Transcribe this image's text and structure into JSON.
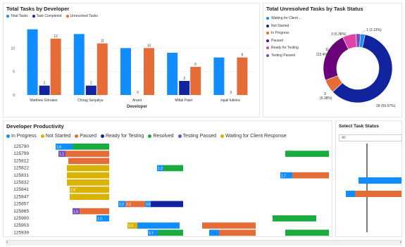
{
  "panels": {
    "tasks_by_dev": {
      "title": "Total Tasks by Developer",
      "legend": [
        {
          "label": "Total Tasks",
          "color": "#118DFF"
        },
        {
          "label": "Task Completed",
          "color": "#12239E"
        },
        {
          "label": "Unresolved Tasks",
          "color": "#E66C37"
        }
      ]
    },
    "unresolved_status": {
      "title": "Total Unresolved Tasks by Task Status",
      "legend": [
        {
          "label": "Waiting for Client ...",
          "color": "#118DFF"
        },
        {
          "label": "Not Started",
          "color": "#12239E"
        },
        {
          "label": "In Progress",
          "color": "#E66C37"
        },
        {
          "label": "Paused",
          "color": "#6B007B"
        },
        {
          "label": "Ready for Testing",
          "color": "#E044A7"
        },
        {
          "label": "Testing Passed",
          "color": "#744EC2"
        }
      ]
    },
    "productivity": {
      "title": "Developer Productivity",
      "legend": [
        {
          "label": "In Progress",
          "color": "#118DFF"
        },
        {
          "label": "Not Started",
          "color": "#D9B300"
        },
        {
          "label": "Paused",
          "color": "#E66C37"
        },
        {
          "label": "Ready for Testing",
          "color": "#12239E"
        },
        {
          "label": "Resolved",
          "color": "#1AAB40"
        },
        {
          "label": "Testing Passed",
          "color": "#744EC2"
        },
        {
          "label": "Waiting for Client Response",
          "color": "#D9B300"
        }
      ]
    },
    "filter": {
      "title": "Select Task Status",
      "value": "All"
    }
  },
  "chart_data": [
    {
      "type": "bar",
      "title": "Total Tasks by Developer",
      "xlabel": "Developer",
      "ylabel": "",
      "categories": [
        "Matthew Grinaker",
        "Chirag Senjaliya",
        "Anant",
        "Mittal Patel",
        "zipali fulletra"
      ],
      "series": [
        {
          "name": "Total Tasks",
          "values": [
            14,
            13,
            10,
            9,
            8
          ]
        },
        {
          "name": "Task Completed",
          "values": [
            2,
            2,
            0,
            3,
            0
          ]
        },
        {
          "name": "Unresolved Tasks",
          "values": [
            12,
            11,
            10,
            6,
            8
          ]
        }
      ],
      "ylim": [
        0,
        15
      ],
      "yticks": [
        0,
        5,
        10
      ]
    },
    {
      "type": "pie",
      "title": "Total Unresolved Tasks by Task Status",
      "labels": [
        "Waiting for Client ...",
        "Not Started",
        "In Progress",
        "Paused",
        "Ready for Testing",
        "Testing Passed"
      ],
      "values": [
        1,
        28,
        3,
        11,
        3,
        1
      ],
      "data_labels": [
        "1 (2.13%)",
        "28 (59.57%)",
        "3 (6.38%)",
        "11 (23.4%)",
        "3 (6.38%)",
        ""
      ]
    },
    {
      "type": "bar",
      "title": "Developer Productivity",
      "categories": [
        "125790",
        "125799",
        "125812",
        "125822",
        "125831",
        "125832",
        "125841",
        "125847",
        "125857",
        "125865",
        "125900",
        "125903",
        "125939"
      ],
      "bar_labels": [
        "1.6",
        "1.1",
        "",
        "1.2",
        "1.7",
        "",
        "2.4",
        "3.9",
        "2.2",
        "1.5",
        "1.0",
        "0.4",
        "0.7"
      ]
    }
  ]
}
